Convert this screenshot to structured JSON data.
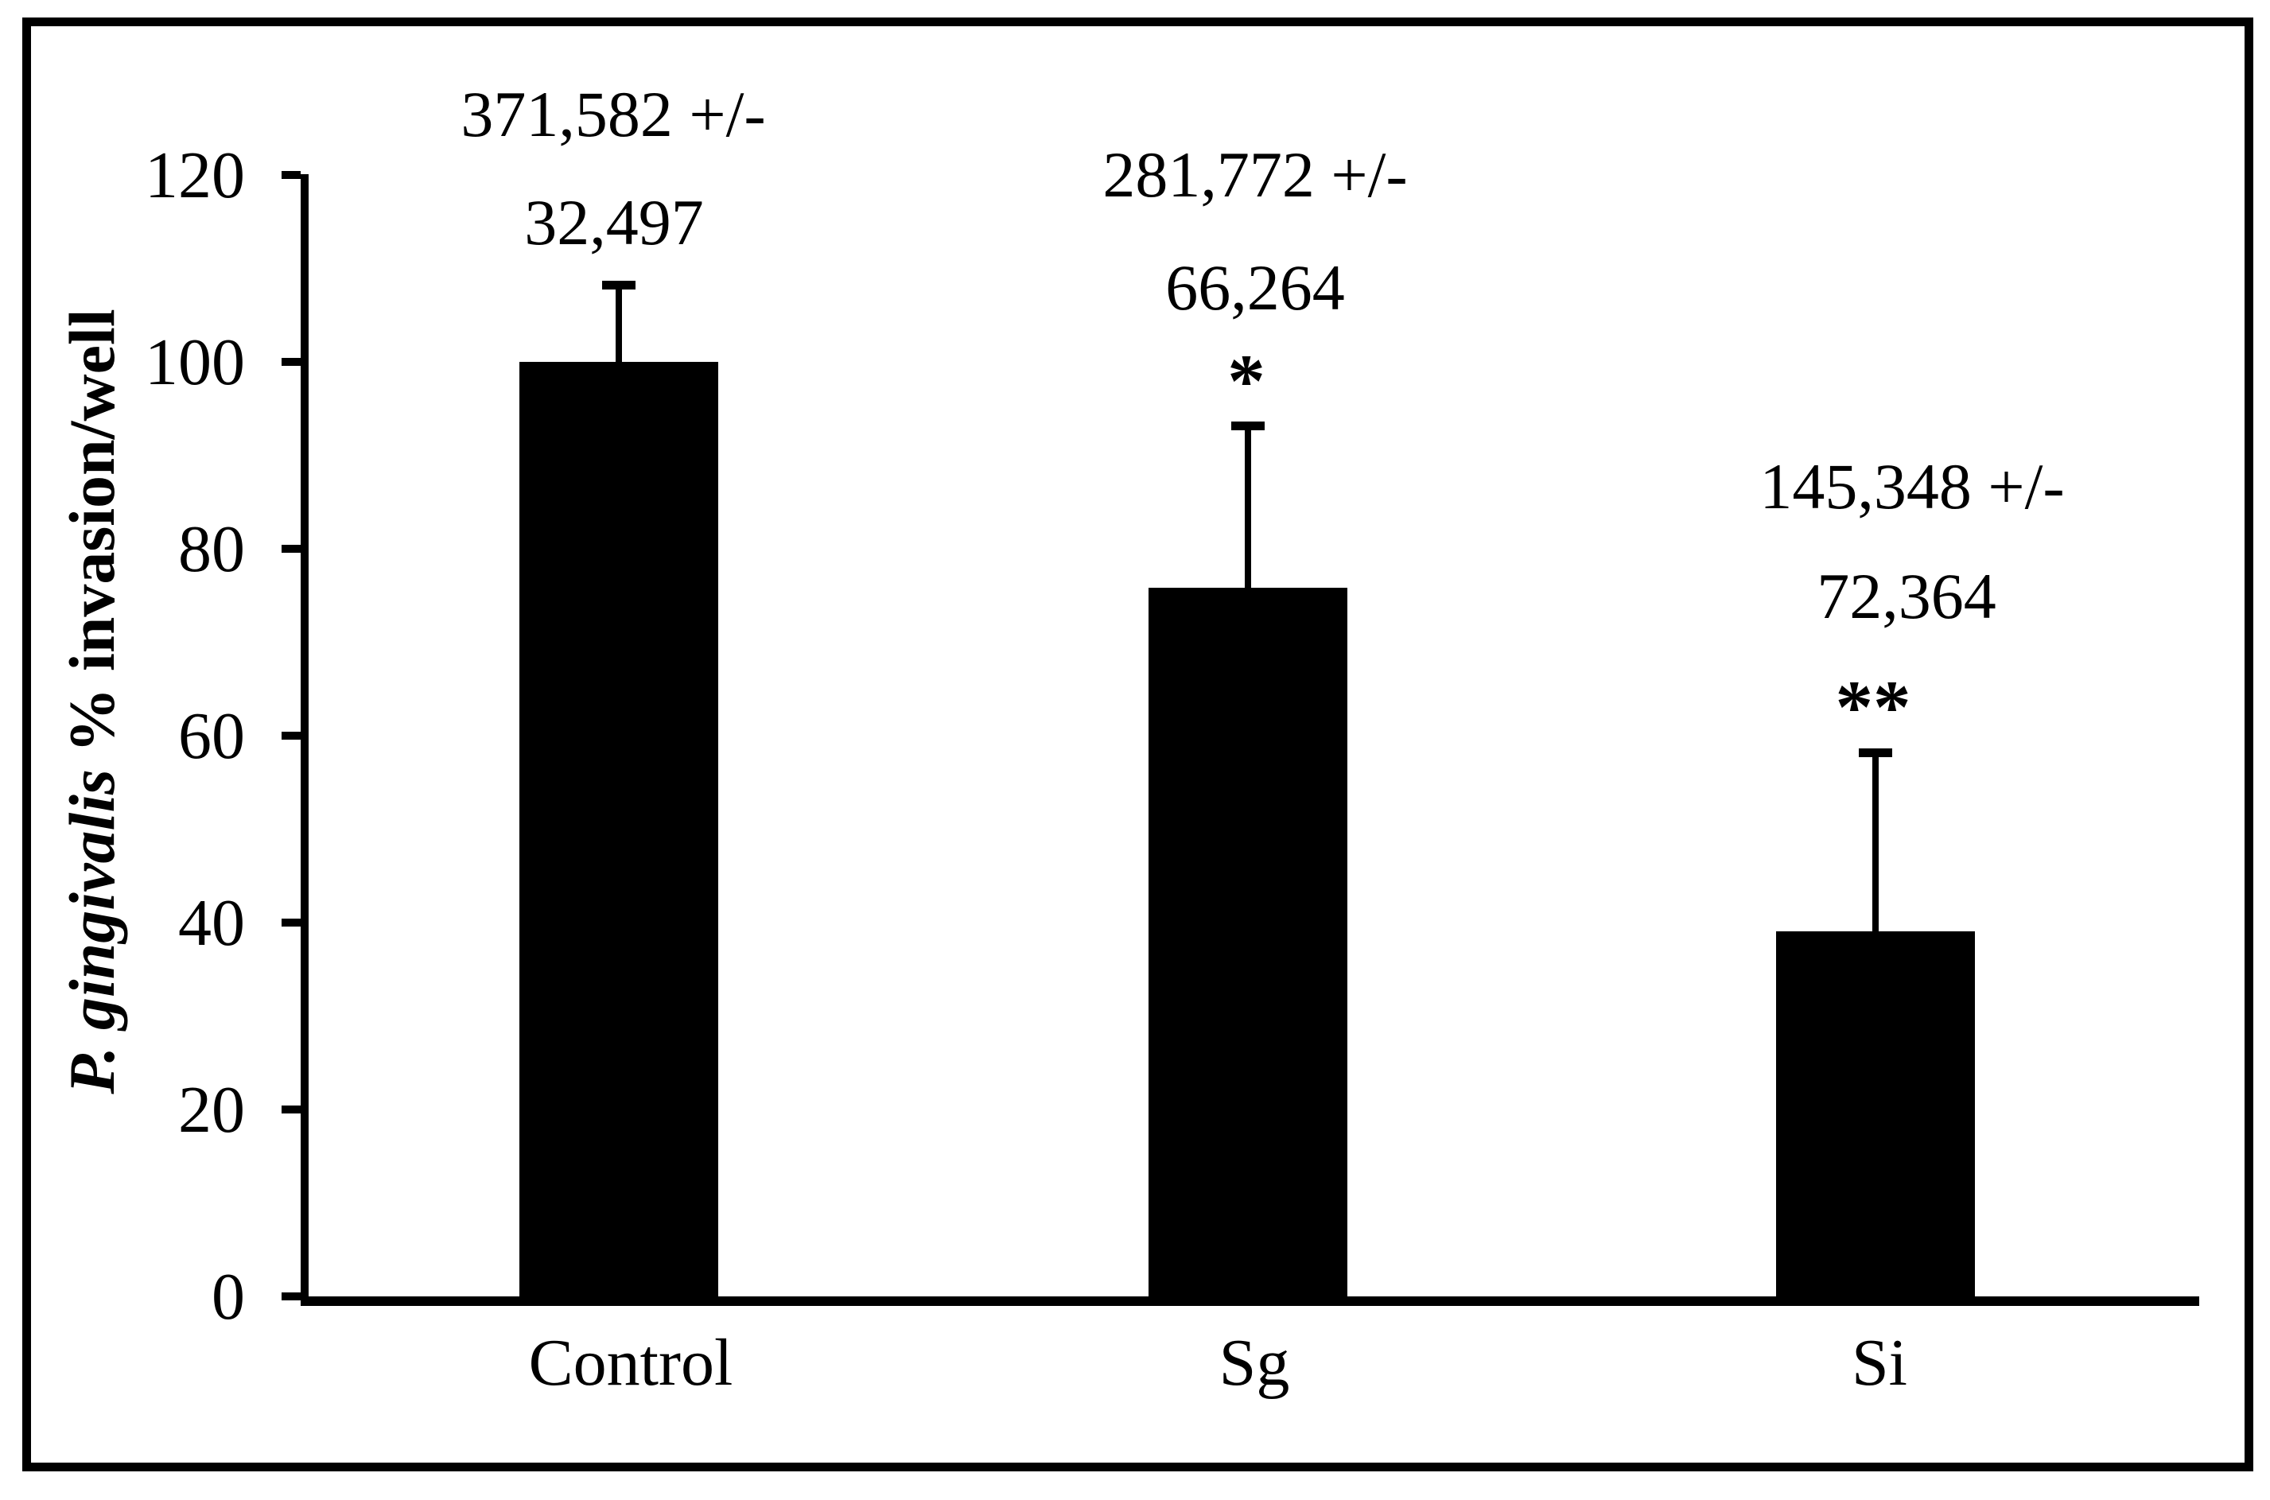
{
  "figure": {
    "background": "#ffffff",
    "frame_color": "#000000"
  },
  "chart_data": {
    "type": "bar",
    "title": "",
    "xlabel": "",
    "ylabel": "P. gingivalis % invasion/well",
    "ylabel_italic": "P. gingivalis",
    "ylabel_rest": " % invasion/well",
    "categories": [
      "Control",
      "Sg",
      "Si"
    ],
    "values": [
      100,
      75.8,
      39.1
    ],
    "error_plus": [
      8.7,
      17.8,
      19.5
    ],
    "bar_color": "#000000",
    "yticks": [
      "0",
      "20",
      "40",
      "60",
      "80",
      "100",
      "120"
    ],
    "ytick_values": [
      0,
      20,
      40,
      60,
      80,
      100,
      120
    ],
    "ylim": [
      0,
      120
    ],
    "grid": false,
    "legend": null,
    "annotations": [
      {
        "lines": [
          "371,582 +/-",
          "32,497"
        ],
        "significance": ""
      },
      {
        "lines": [
          "281,772 +/-",
          "66,264"
        ],
        "significance": "*"
      },
      {
        "lines": [
          "145,348 +/-",
          "72,364"
        ],
        "significance": "**"
      }
    ]
  }
}
